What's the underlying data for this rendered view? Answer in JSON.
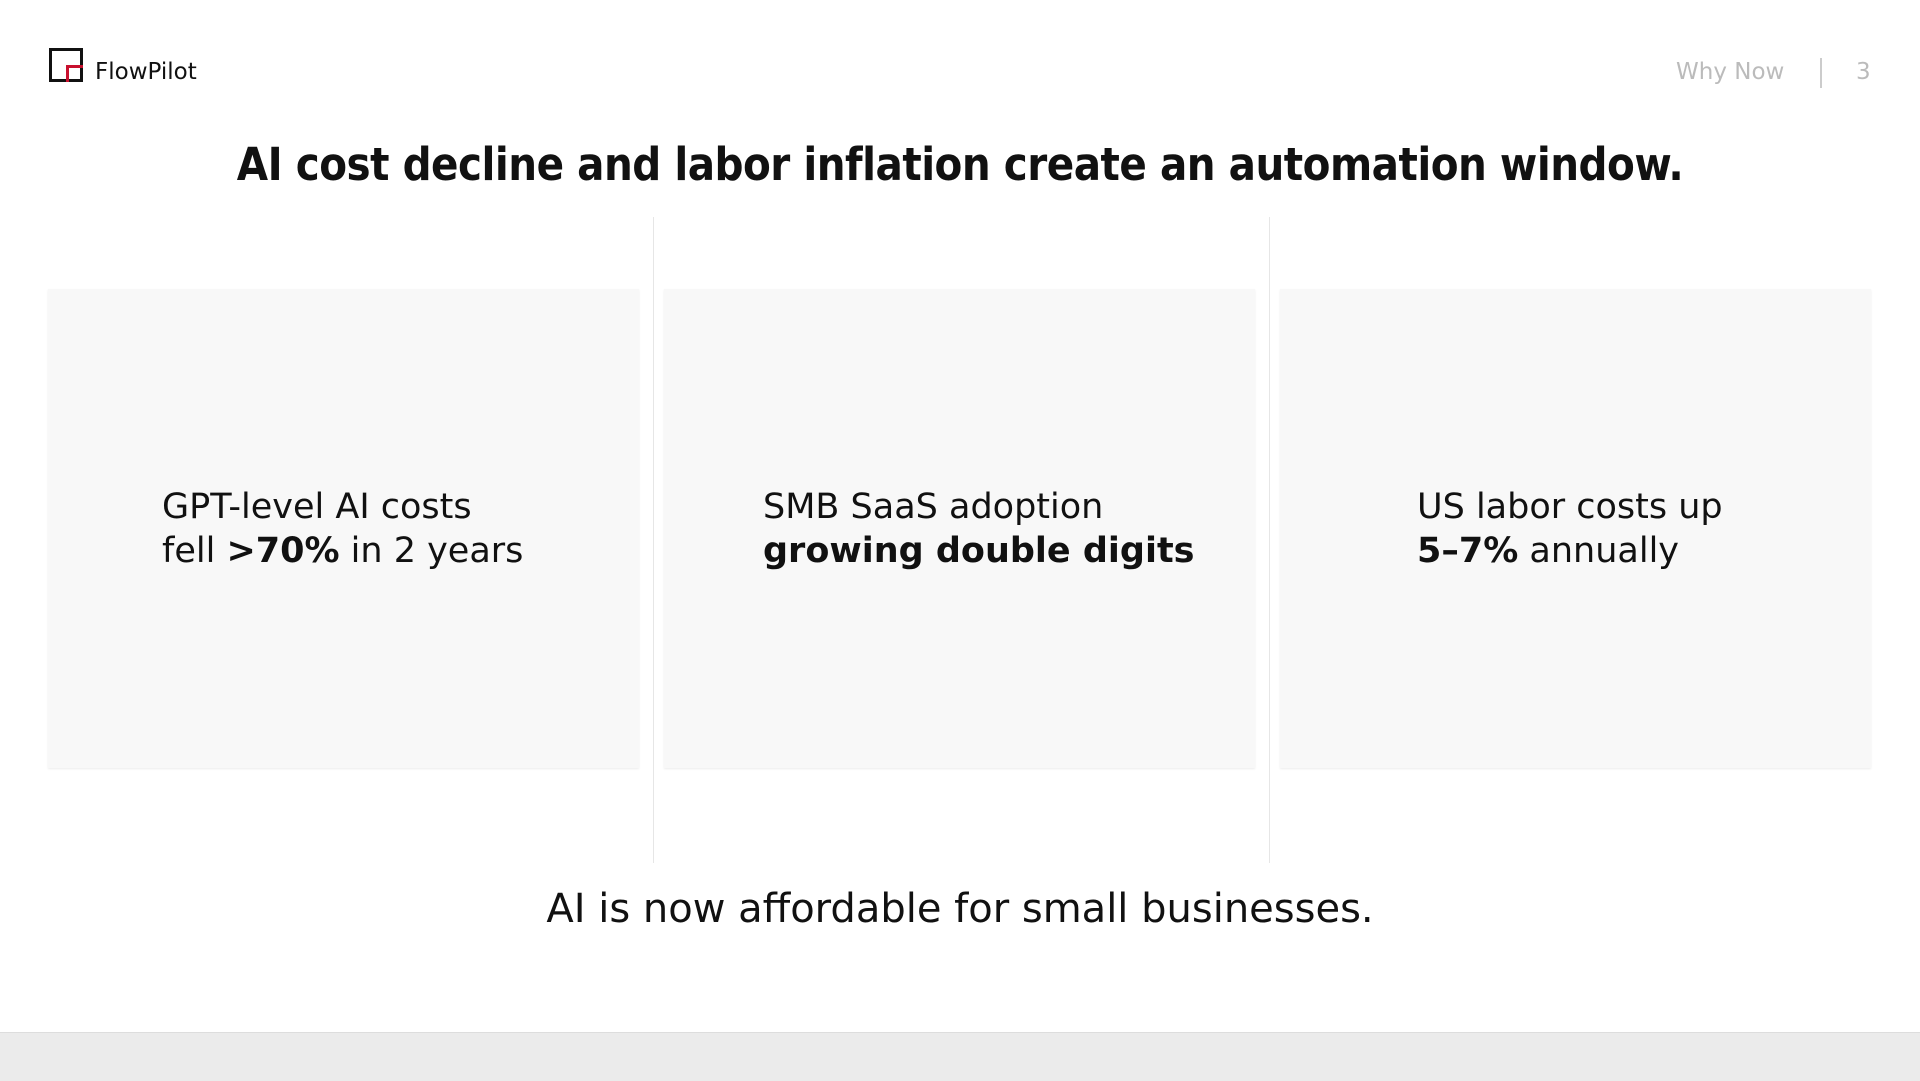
{
  "header": {
    "brand": "FlowPilot",
    "section": "Why Now",
    "page": "3"
  },
  "title": "AI cost decline and labor inflation create an automation window.",
  "cards": [
    {
      "lines": [
        [
          {
            "text": "GPT-level AI costs",
            "bold": false
          }
        ],
        [
          {
            "text": "fell ",
            "bold": false
          },
          {
            "text": ">70%",
            "bold": true
          },
          {
            "text": " in 2 years",
            "bold": false
          }
        ]
      ]
    },
    {
      "lines": [
        [
          {
            "text": "SMB SaaS adoption",
            "bold": false
          }
        ],
        [
          {
            "text": "growing double digits",
            "bold": true
          }
        ]
      ]
    },
    {
      "lines": [
        [
          {
            "text": "US labor costs up",
            "bold": false
          }
        ],
        [
          {
            "text": "5–7%",
            "bold": true
          },
          {
            "text": " annually",
            "bold": false
          }
        ]
      ]
    }
  ],
  "footer": "AI is now affordable for small businesses."
}
